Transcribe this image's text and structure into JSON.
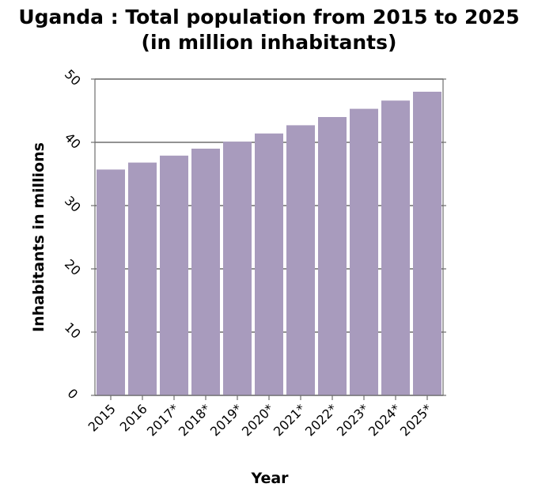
{
  "chart_data": {
    "type": "bar",
    "title": "Uganda : Total population from 2015 to 2025",
    "subtitle": "(in million inhabitants)",
    "xlabel": "Year",
    "ylabel": "Inhabitants in millions",
    "categories": [
      "2015",
      "2016",
      "2017*",
      "2018*",
      "2019*",
      "2020*",
      "2021*",
      "2022*",
      "2023*",
      "2024*",
      "2025*"
    ],
    "values": [
      35.7,
      36.8,
      37.9,
      39.0,
      40.1,
      41.4,
      42.7,
      44.0,
      45.3,
      46.6,
      48.0
    ],
    "ylim": [
      0,
      50
    ],
    "yticks": [
      0,
      10,
      20,
      30,
      40,
      50
    ],
    "ytick_labels": [
      "0",
      "10",
      "20",
      "30",
      "40",
      "50"
    ],
    "grid": true,
    "bar_color": "#a89bbd",
    "legend": "none"
  }
}
